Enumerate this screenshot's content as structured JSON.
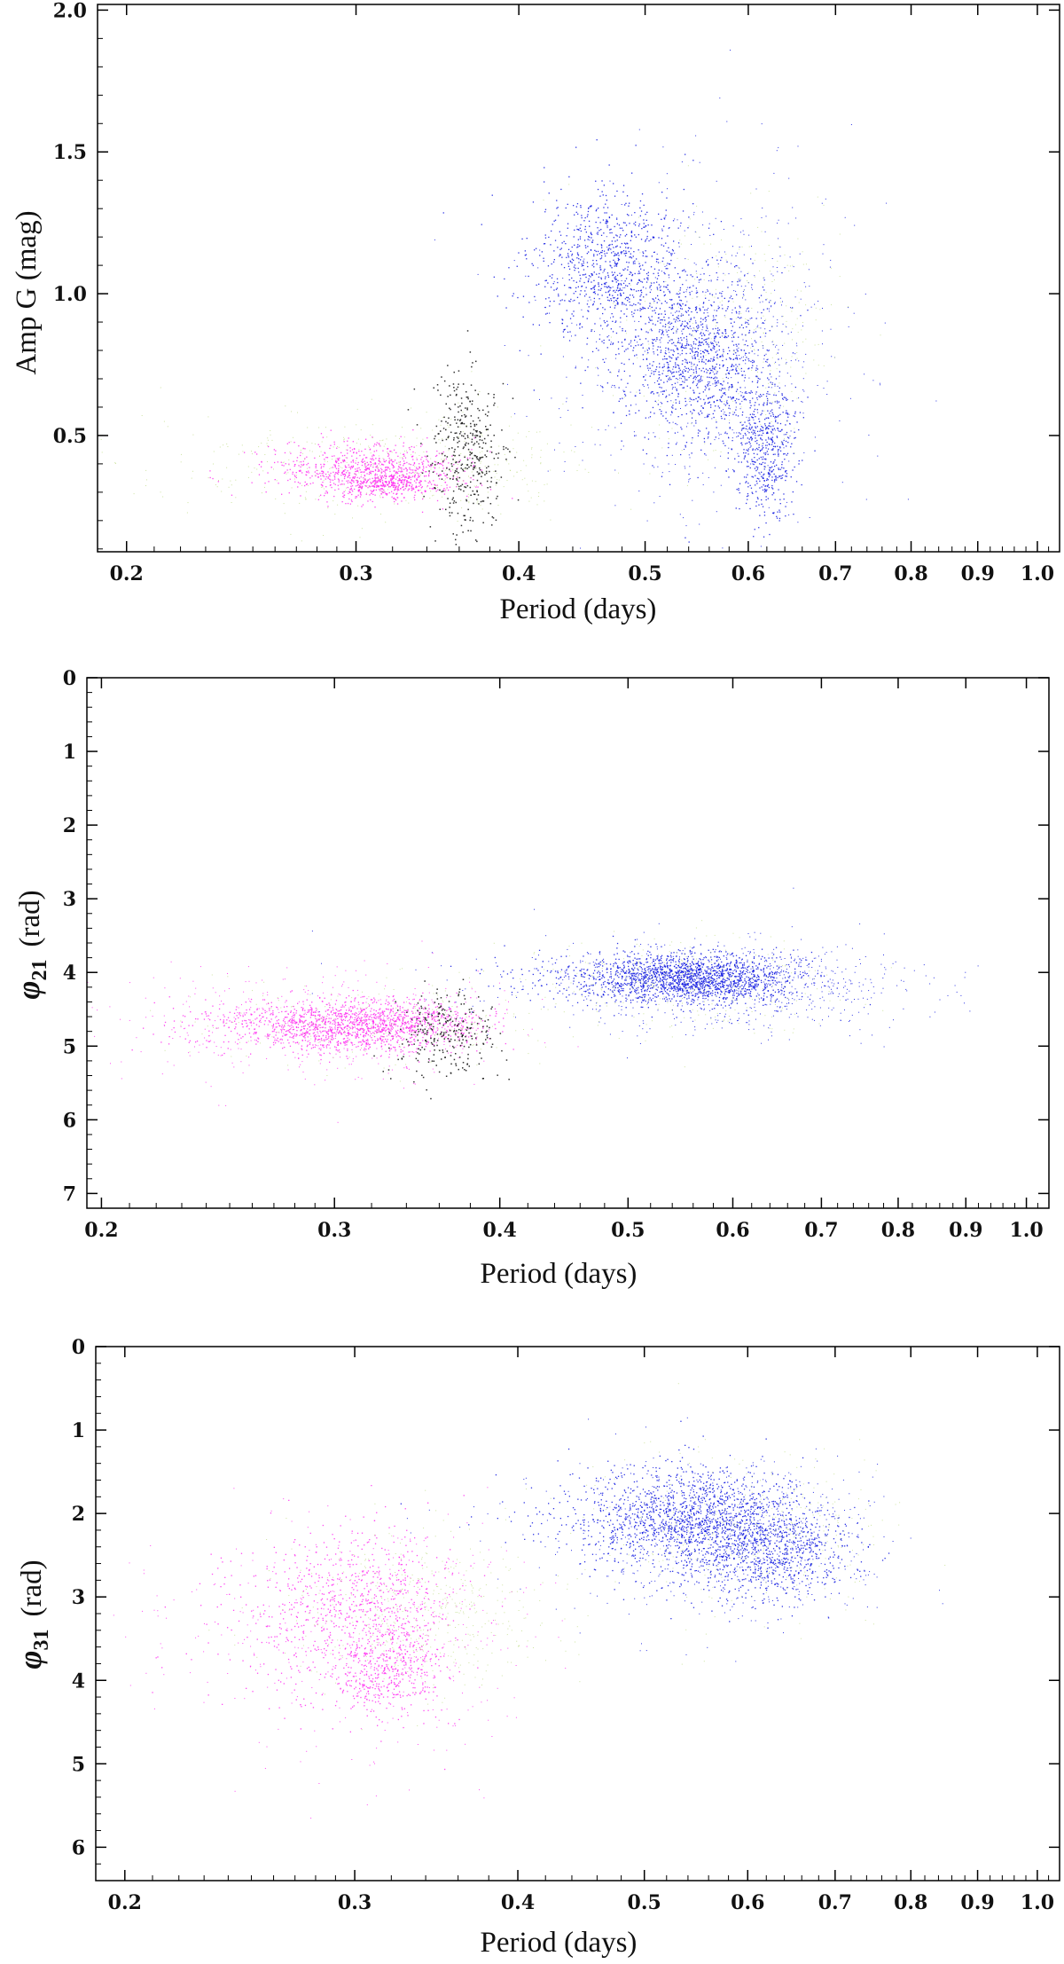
{
  "colors": {
    "rrab": "#0b14e0",
    "rrc": "#ff2cf0",
    "rrd": "#111111",
    "other": "#b9d879"
  },
  "chart_data": [
    {
      "type": "scatter",
      "xlabel": "Period (days)",
      "ylabel": "Amp G (mag)",
      "ylabel_symbol": "",
      "ylabel_subscript": "",
      "ylabel_unit": "",
      "xscale": "log",
      "xlim": [
        0.19,
        1.04
      ],
      "ylim": [
        0.09,
        2.02
      ],
      "yinverted": false,
      "xticks": [
        "0.2",
        "0.3",
        "0.4",
        "0.5",
        "0.6",
        "0.7",
        "0.8",
        "0.9",
        "1.0"
      ],
      "yticks": [
        "0.5",
        "1.0",
        "1.5",
        "2.0"
      ],
      "series": [
        {
          "color_key": "rrab",
          "clusters": [
            {
              "x": 0.47,
              "y": 1.08,
              "sx": 0.03,
              "sy": 0.14,
              "n": 900,
              "size": 1.3
            },
            {
              "x": 0.55,
              "y": 0.78,
              "sx": 0.035,
              "sy": 0.16,
              "n": 1100,
              "size": 1.3
            },
            {
              "x": 0.62,
              "y": 0.45,
              "sx": 0.018,
              "sy": 0.12,
              "n": 500,
              "size": 1.3
            },
            {
              "x": 0.56,
              "y": 0.8,
              "sx": 0.07,
              "sy": 0.28,
              "n": 700,
              "size": 1.0
            }
          ]
        },
        {
          "color_key": "rrc",
          "clusters": [
            {
              "x": 0.31,
              "y": 0.37,
              "sx": 0.025,
              "sy": 0.05,
              "n": 900,
              "size": 1.3
            },
            {
              "x": 0.32,
              "y": 0.33,
              "sx": 0.01,
              "sy": 0.02,
              "n": 120,
              "size": 1.6
            }
          ]
        },
        {
          "color_key": "other",
          "clusters": [
            {
              "x": 0.32,
              "y": 0.4,
              "sx": 0.06,
              "sy": 0.09,
              "n": 450,
              "size": 1.0
            },
            {
              "x": 0.58,
              "y": 0.85,
              "sx": 0.06,
              "sy": 0.22,
              "n": 300,
              "size": 1.0
            }
          ]
        },
        {
          "color_key": "rrd",
          "clusters": [
            {
              "x": 0.365,
              "y": 0.45,
              "sx": 0.012,
              "sy": 0.15,
              "n": 380,
              "size": 1.5
            }
          ]
        }
      ]
    },
    {
      "type": "scatter",
      "xlabel": "Period (days)",
      "ylabel": "",
      "ylabel_symbol": "φ",
      "ylabel_subscript": "21",
      "ylabel_unit": "(rad)",
      "xscale": "log",
      "xlim": [
        0.195,
        1.04
      ],
      "ylim": [
        0,
        7.2
      ],
      "yinverted": true,
      "xticks": [
        "0.2",
        "0.3",
        "0.4",
        "0.5",
        "0.6",
        "0.7",
        "0.8",
        "0.9",
        "1.0"
      ],
      "yticks": [
        "0",
        "1",
        "2",
        "3",
        "4",
        "5",
        "6",
        "7"
      ],
      "series": [
        {
          "color_key": "rrab",
          "clusters": [
            {
              "x": 0.55,
              "y": 4.08,
              "sx": 0.055,
              "sy": 0.17,
              "n": 1800,
              "size": 1.3
            },
            {
              "x": 0.6,
              "y": 4.2,
              "sx": 0.11,
              "sy": 0.3,
              "n": 700,
              "size": 1.0
            }
          ]
        },
        {
          "color_key": "rrc",
          "clusters": [
            {
              "x": 0.31,
              "y": 4.72,
              "sx": 0.035,
              "sy": 0.17,
              "n": 1500,
              "size": 1.3
            },
            {
              "x": 0.3,
              "y": 4.7,
              "sx": 0.05,
              "sy": 0.35,
              "n": 500,
              "size": 1.0
            }
          ]
        },
        {
          "color_key": "other",
          "clusters": [
            {
              "x": 0.55,
              "y": 4.2,
              "sx": 0.08,
              "sy": 0.35,
              "n": 300,
              "size": 1.0
            },
            {
              "x": 0.32,
              "y": 4.7,
              "sx": 0.05,
              "sy": 0.3,
              "n": 200,
              "size": 1.0
            }
          ]
        },
        {
          "color_key": "rrd",
          "clusters": [
            {
              "x": 0.365,
              "y": 4.85,
              "sx": 0.015,
              "sy": 0.3,
              "n": 260,
              "size": 1.5
            }
          ]
        }
      ]
    },
    {
      "type": "scatter",
      "xlabel": "Period (days)",
      "ylabel": "",
      "ylabel_symbol": "φ",
      "ylabel_subscript": "31",
      "ylabel_unit": "(rad)",
      "xscale": "log",
      "xlim": [
        0.19,
        1.04
      ],
      "ylim": [
        0,
        6.4
      ],
      "yinverted": true,
      "xticks": [
        "0.2",
        "0.3",
        "0.4",
        "0.5",
        "0.6",
        "0.7",
        "0.8",
        "0.9",
        "1.0"
      ],
      "yticks": [
        "0",
        "1",
        "2",
        "3",
        "4",
        "5",
        "6"
      ],
      "series": [
        {
          "color_key": "rrab",
          "clusters": [
            {
              "x": 0.54,
              "y": 2.05,
              "sx": 0.055,
              "sy": 0.3,
              "n": 1400,
              "size": 1.3
            },
            {
              "x": 0.62,
              "y": 2.45,
              "sx": 0.05,
              "sy": 0.3,
              "n": 900,
              "size": 1.3
            },
            {
              "x": 0.58,
              "y": 2.3,
              "sx": 0.09,
              "sy": 0.5,
              "n": 600,
              "size": 1.0
            }
          ]
        },
        {
          "color_key": "rrc",
          "clusters": [
            {
              "x": 0.3,
              "y": 3.2,
              "sx": 0.03,
              "sy": 0.5,
              "n": 900,
              "size": 1.3
            },
            {
              "x": 0.32,
              "y": 3.9,
              "sx": 0.015,
              "sy": 0.25,
              "n": 350,
              "size": 1.3
            },
            {
              "x": 0.31,
              "y": 3.4,
              "sx": 0.05,
              "sy": 0.75,
              "n": 400,
              "size": 1.0
            }
          ]
        },
        {
          "color_key": "other",
          "clusters": [
            {
              "x": 0.34,
              "y": 3.2,
              "sx": 0.04,
              "sy": 0.45,
              "n": 450,
              "size": 1.0
            },
            {
              "x": 0.6,
              "y": 2.2,
              "sx": 0.08,
              "sy": 0.5,
              "n": 350,
              "size": 1.0
            }
          ]
        }
      ]
    }
  ]
}
